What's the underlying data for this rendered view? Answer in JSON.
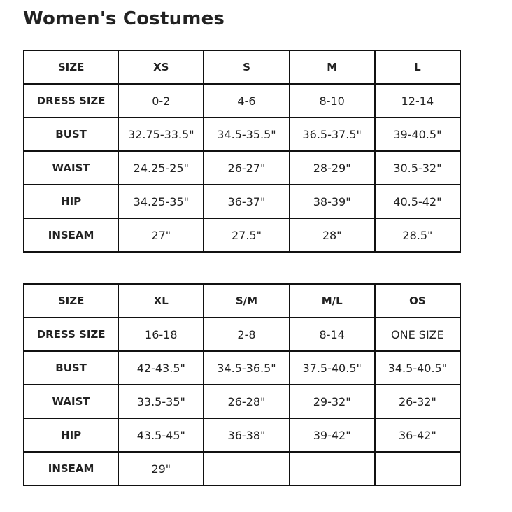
{
  "title": "Women's Costumes",
  "tables": [
    {
      "header": [
        "SIZE",
        "XS",
        "S",
        "M",
        "L"
      ],
      "rows": [
        [
          "DRESS SIZE",
          "0-2",
          "4-6",
          "8-10",
          "12-14"
        ],
        [
          "BUST",
          "32.75-33.5\"",
          "34.5-35.5\"",
          "36.5-37.5\"",
          "39-40.5\""
        ],
        [
          "WAIST",
          "24.25-25\"",
          "26-27\"",
          "28-29\"",
          "30.5-32\""
        ],
        [
          "HIP",
          "34.25-35\"",
          "36-37\"",
          "38-39\"",
          "40.5-42\""
        ],
        [
          "INSEAM",
          "27\"",
          "27.5\"",
          "28\"",
          "28.5\""
        ]
      ]
    },
    {
      "header": [
        "SIZE",
        "XL",
        "S/M",
        "M/L",
        "OS"
      ],
      "rows": [
        [
          "DRESS SIZE",
          "16-18",
          "2-8",
          "8-14",
          "ONE SIZE"
        ],
        [
          "BUST",
          "42-43.5\"",
          "34.5-36.5\"",
          "37.5-40.5\"",
          "34.5-40.5\""
        ],
        [
          "WAIST",
          "33.5-35\"",
          "26-28\"",
          "29-32\"",
          "26-32\""
        ],
        [
          "HIP",
          "43.5-45\"",
          "36-38\"",
          "39-42\"",
          "36-42\""
        ],
        [
          "INSEAM",
          "29\"",
          "",
          "",
          ""
        ]
      ]
    }
  ]
}
